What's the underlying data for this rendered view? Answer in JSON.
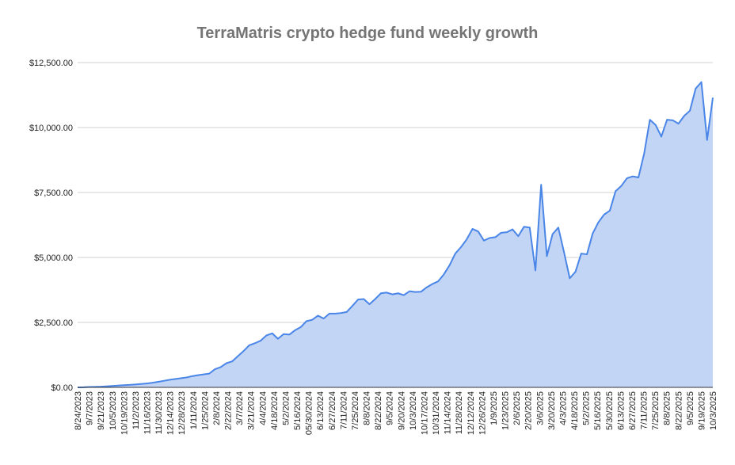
{
  "chart_data": {
    "type": "area",
    "title": "TerraMatris crypto hedge fund weekly growth",
    "xlabel": "",
    "ylabel": "",
    "ylim": [
      0,
      12500
    ],
    "yticks": [
      "$0.00",
      "$2,500.00",
      "$5,000.00",
      "$7,500.00",
      "$10,000.00",
      "$12,500.00"
    ],
    "ytick_values": [
      0,
      2500,
      5000,
      7500,
      10000,
      12500
    ],
    "grid": true,
    "legend": "none",
    "colors": {
      "line": "#4a86e8",
      "fill": "#c3d5f5"
    },
    "x_tick_labels": [
      "8/24/2023",
      "9/7/2023",
      "9/21/2023",
      "10/5/2023",
      "10/19/2023",
      "11/2/2023",
      "11/16/2023",
      "11/30/2023",
      "12/14/2023",
      "12/28/2023",
      "1/11/2024",
      "1/25/2024",
      "2/8/2024",
      "2/22/2024",
      "3/7/2024",
      "3/21/2024",
      "4/4/2024",
      "4/18/2024",
      "5/2/2024",
      "5/16/2024",
      "05/30/2024",
      "6/13/2024",
      "6/27/2024",
      "7/11/2024",
      "7/25/2024",
      "8/8/2024",
      "8/22/2024",
      "9/5/2024",
      "9/20/2024",
      "10/3/2024",
      "10/17/2024",
      "10/31/2024",
      "11/14/2024",
      "11/28/2024",
      "12/12/2024",
      "12/26/2024",
      "1/9/2025",
      "1/23/2025",
      "2/6/2025",
      "2/20/2025",
      "3/6/2025",
      "3/20/2025",
      "4/3/2025",
      "4/18/2025",
      "5/2/2025",
      "5/16/2025",
      "5/30/2025",
      "6/13/2025",
      "6/27/2025",
      "7/11/2025",
      "7/25/2025",
      "8/8/2025",
      "8/22/2025",
      "9/5/2025",
      "9/19/2025",
      "10/3/2025"
    ],
    "values": [
      0,
      5,
      15,
      20,
      25,
      40,
      55,
      70,
      85,
      95,
      110,
      130,
      150,
      175,
      210,
      250,
      290,
      320,
      350,
      380,
      430,
      470,
      500,
      530,
      700,
      780,
      930,
      1000,
      1200,
      1400,
      1620,
      1700,
      1800,
      2000,
      2080,
      1870,
      2050,
      2030,
      2200,
      2320,
      2550,
      2600,
      2760,
      2650,
      2840,
      2840,
      2860,
      2900,
      3130,
      3380,
      3400,
      3200,
      3400,
      3620,
      3650,
      3580,
      3620,
      3550,
      3700,
      3670,
      3680,
      3850,
      3980,
      4080,
      4350,
      4700,
      5150,
      5400,
      5700,
      6100,
      6000,
      5650,
      5750,
      5780,
      5950,
      5970,
      6080,
      5820,
      6180,
      6150,
      4500,
      7800,
      5050,
      5900,
      6150,
      5200,
      4200,
      4450,
      5150,
      5120,
      5920,
      6350,
      6650,
      6800,
      7550,
      7750,
      8050,
      8120,
      8080,
      9000,
      10300,
      10100,
      9650,
      10300,
      10280,
      10150,
      10450,
      10650,
      11500,
      11750,
      9520,
      11150
    ]
  }
}
